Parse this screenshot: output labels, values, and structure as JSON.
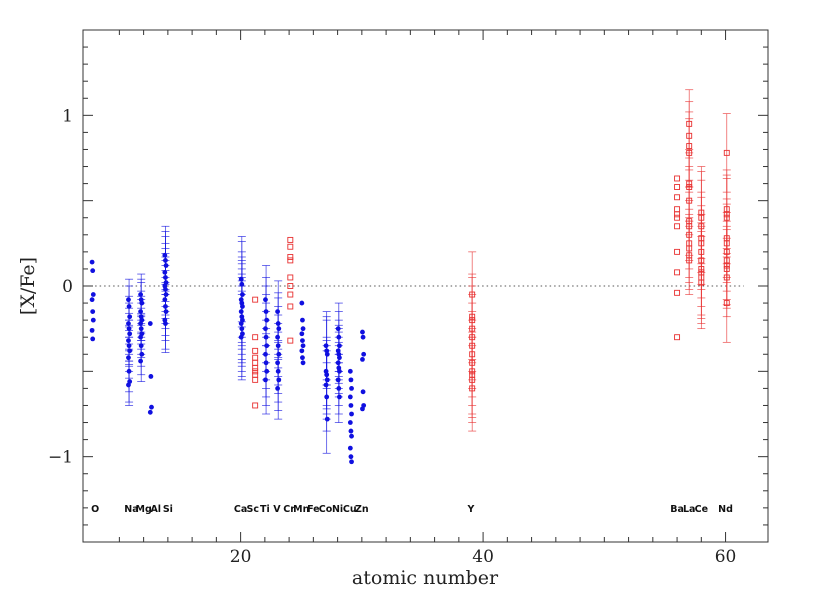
{
  "chart_data": {
    "type": "scatter",
    "xlabel": "atomic number",
    "ylabel": "[X/Fe]",
    "xlim": [
      7,
      63.5
    ],
    "ylim": [
      -1.5,
      1.5
    ],
    "x_ticks": [
      20,
      40,
      60
    ],
    "y_ticks": [
      1,
      0,
      -1
    ],
    "y_tick_labels": [
      "1",
      "0",
      "−1"
    ],
    "reference_line": 0,
    "grid": false,
    "colors": {
      "blue": "#1010e0",
      "red": "#e83030",
      "axis": "#333333"
    },
    "element_labels": [
      {
        "label": "O",
        "z": 8
      },
      {
        "label": "Na",
        "z": 11
      },
      {
        "label": "Mg",
        "z": 12
      },
      {
        "label": "Al",
        "z": 13
      },
      {
        "label": "Si",
        "z": 14
      },
      {
        "label": "Ca",
        "z": 20
      },
      {
        "label": "Sc",
        "z": 21
      },
      {
        "label": "Ti",
        "z": 22
      },
      {
        "label": "V",
        "z": 23
      },
      {
        "label": "Cr",
        "z": 24
      },
      {
        "label": "Mn",
        "z": 25
      },
      {
        "label": "Fe",
        "z": 26
      },
      {
        "label": "Co",
        "z": 27
      },
      {
        "label": "Ni",
        "z": 28
      },
      {
        "label": "Cu",
        "z": 29
      },
      {
        "label": "Zn",
        "z": 30
      },
      {
        "label": "Y",
        "z": 39
      },
      {
        "label": "Ba",
        "z": 56
      },
      {
        "label": "La",
        "z": 57
      },
      {
        "label": "Ce",
        "z": 58
      },
      {
        "label": "Nd",
        "z": 60
      }
    ],
    "series": [
      {
        "element": "O",
        "z": 7.8,
        "color": "blue",
        "marker": "dot",
        "values": [
          0.14,
          0.09,
          -0.05,
          -0.08,
          -0.15,
          -0.2,
          -0.26,
          -0.31
        ]
      },
      {
        "element": "Na",
        "z": 10.8,
        "color": "blue",
        "marker": "dot",
        "error": 0.12,
        "values": [
          -0.08,
          -0.12,
          -0.18,
          -0.22,
          -0.25,
          -0.28,
          -0.32,
          -0.35,
          -0.38,
          -0.42,
          -0.5,
          -0.56,
          -0.58
        ]
      },
      {
        "element": "Mg",
        "z": 11.8,
        "color": "blue",
        "marker": "dot",
        "error": 0.12,
        "values": [
          -0.05,
          -0.08,
          -0.1,
          -0.15,
          -0.18,
          -0.2,
          -0.22,
          -0.25,
          -0.28,
          -0.3,
          -0.35,
          -0.4,
          -0.44
        ]
      },
      {
        "element": "Al",
        "z": 12.6,
        "color": "blue",
        "marker": "dot",
        "values": [
          -0.22,
          -0.53,
          -0.71,
          -0.74
        ]
      },
      {
        "element": "Si",
        "z": 13.8,
        "color": "blue",
        "marker": "dot",
        "error": 0.17,
        "values": [
          0.18,
          0.15,
          0.12,
          0.08,
          0.05,
          0.02,
          0.0,
          -0.02,
          -0.05,
          -0.08,
          -0.12,
          -0.15,
          -0.2,
          -0.22
        ]
      },
      {
        "element": "Ca",
        "z": 20.1,
        "color": "blue",
        "marker": "dot",
        "error": 0.25,
        "values": [
          0.04,
          0.01,
          -0.05,
          -0.08,
          -0.1,
          -0.12,
          -0.15,
          -0.18,
          -0.2,
          -0.22,
          -0.25,
          -0.28,
          -0.3
        ]
      },
      {
        "element": "Sc",
        "z": 21.2,
        "color": "red",
        "marker": "square",
        "values": [
          -0.08,
          -0.3,
          -0.38,
          -0.42,
          -0.45,
          -0.48,
          -0.5,
          -0.52,
          -0.55,
          -0.7
        ]
      },
      {
        "element": "Ti",
        "z": 22.1,
        "color": "blue",
        "marker": "dot",
        "error": 0.2,
        "values": [
          -0.08,
          -0.15,
          -0.2,
          -0.25,
          -0.3,
          -0.35,
          -0.4,
          -0.45,
          -0.5,
          -0.55
        ]
      },
      {
        "element": "V",
        "z": 23.1,
        "color": "blue",
        "marker": "dot",
        "error": 0.18,
        "values": [
          -0.15,
          -0.22,
          -0.25,
          -0.3,
          -0.35,
          -0.4,
          -0.45,
          -0.5,
          -0.55,
          -0.6
        ]
      },
      {
        "element": "Cr",
        "z": 24.1,
        "color": "red",
        "marker": "square",
        "values": [
          0.27,
          0.23,
          0.17,
          0.15,
          0.05,
          0.0,
          -0.05,
          -0.12,
          -0.32
        ]
      },
      {
        "element": "Mn",
        "z": 25.1,
        "color": "blue",
        "marker": "dot",
        "values": [
          -0.1,
          -0.2,
          -0.25,
          -0.28,
          -0.32,
          -0.35,
          -0.38,
          -0.42,
          -0.45
        ]
      },
      {
        "element": "Co",
        "z": 27.1,
        "color": "blue",
        "marker": "dot",
        "error": 0.2,
        "values": [
          -0.35,
          -0.38,
          -0.4,
          -0.5,
          -0.52,
          -0.55,
          -0.58,
          -0.65,
          -0.78
        ]
      },
      {
        "element": "Ni",
        "z": 28.1,
        "color": "blue",
        "marker": "dot",
        "error": 0.15,
        "values": [
          -0.25,
          -0.3,
          -0.35,
          -0.38,
          -0.4,
          -0.42,
          -0.45,
          -0.48,
          -0.5,
          -0.55,
          -0.6,
          -0.65
        ]
      },
      {
        "element": "Cu",
        "z": 29.1,
        "color": "blue",
        "marker": "dot",
        "values": [
          -0.5,
          -0.55,
          -0.6,
          -0.65,
          -0.7,
          -0.75,
          -0.8,
          -0.85,
          -0.88,
          -0.95,
          -1.0,
          -1.03
        ]
      },
      {
        "element": "Zn",
        "z": 30.1,
        "color": "blue",
        "marker": "dot",
        "values": [
          -0.27,
          -0.3,
          -0.4,
          -0.43,
          -0.62,
          -0.7,
          -0.72
        ]
      },
      {
        "element": "Y",
        "z": 39.1,
        "color": "red",
        "marker": "square",
        "error": 0.25,
        "values": [
          -0.05,
          -0.18,
          -0.2,
          -0.25,
          -0.3,
          -0.35,
          -0.4,
          -0.45,
          -0.5,
          -0.52,
          -0.55,
          -0.6
        ]
      },
      {
        "element": "Ba",
        "z": 56.0,
        "color": "red",
        "marker": "square",
        "values": [
          0.63,
          0.58,
          0.52,
          0.45,
          0.42,
          0.4,
          0.35,
          0.2,
          0.08,
          -0.04,
          -0.3
        ]
      },
      {
        "element": "La",
        "z": 57.0,
        "color": "red",
        "marker": "square",
        "error": 0.2,
        "values": [
          0.95,
          0.88,
          0.82,
          0.78,
          0.6,
          0.58,
          0.5,
          0.38,
          0.35,
          0.3,
          0.25,
          0.22,
          0.18,
          0.15
        ]
      },
      {
        "element": "Ce",
        "z": 58.0,
        "color": "red",
        "marker": "square",
        "error": 0.27,
        "values": [
          0.43,
          0.4,
          0.35,
          0.28,
          0.25,
          0.2,
          0.15,
          0.1,
          0.08,
          0.05,
          0.02
        ]
      },
      {
        "element": "Nd",
        "z": 60.1,
        "color": "red",
        "marker": "square",
        "error": 0.23,
        "values": [
          0.78,
          0.45,
          0.42,
          0.4,
          0.28,
          0.25,
          0.2,
          0.15,
          0.12,
          0.1,
          0.05,
          -0.1
        ]
      }
    ]
  }
}
